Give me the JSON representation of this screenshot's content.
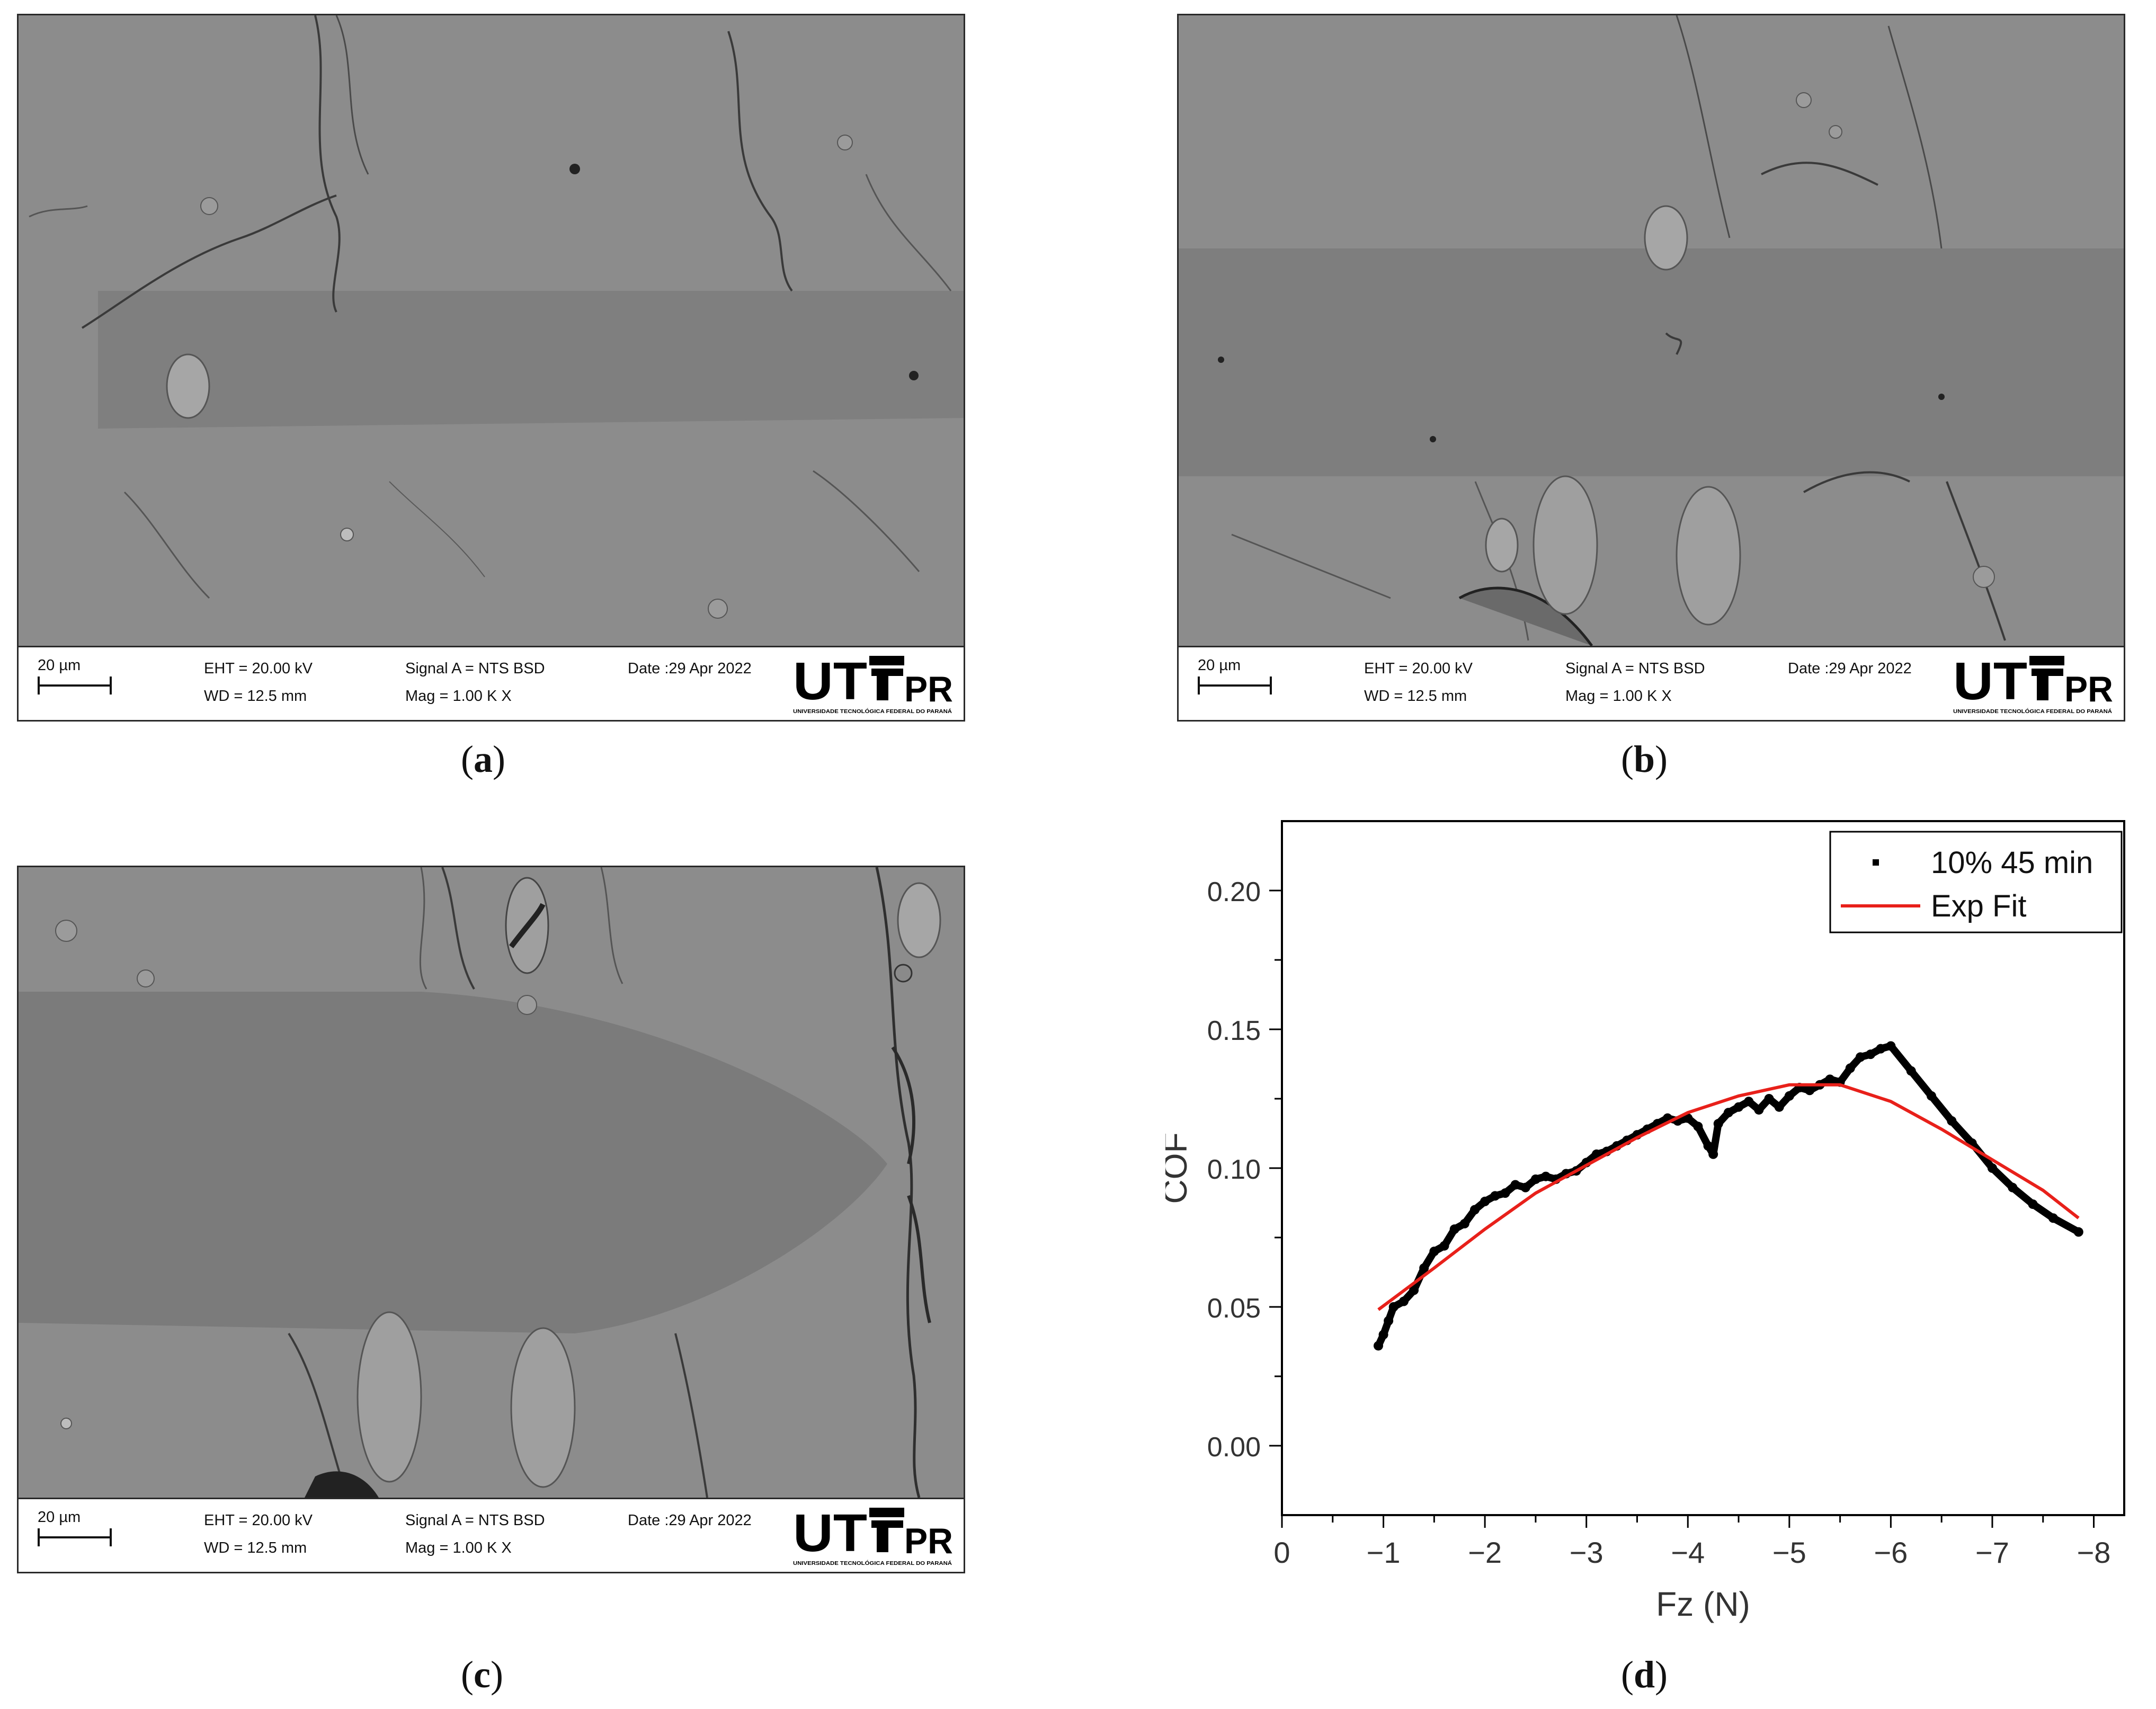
{
  "panels": [
    {
      "id": "a",
      "caption_open": "(",
      "caption_letter": "a",
      "caption_close": ")",
      "scale": "20 µm",
      "eht": "EHT = 20.00 kV",
      "wd": "WD = 12.5 mm",
      "signal": "Signal A = NTS BSD",
      "mag": "Mag =    1.00 K X",
      "date": "Date :29 Apr 2022",
      "logo_main": "UT",
      "logo_pr": "PR",
      "logo_sub": "UNIVERSIDADE TECNOLÓGICA FEDERAL DO PARANÁ"
    },
    {
      "id": "b",
      "caption_open": "(",
      "caption_letter": "b",
      "caption_close": ")",
      "scale": "20 µm",
      "eht": "EHT = 20.00 kV",
      "wd": "WD = 12.5 mm",
      "signal": "Signal A = NTS BSD",
      "mag": "Mag =    1.00 K X",
      "date": "Date :29 Apr 2022",
      "logo_main": "UT",
      "logo_pr": "PR",
      "logo_sub": "UNIVERSIDADE TECNOLÓGICA FEDERAL DO PARANÁ"
    },
    {
      "id": "c",
      "caption_open": "(",
      "caption_letter": "c",
      "caption_close": ")",
      "scale": "20 µm",
      "eht": "EHT = 20.00 kV",
      "wd": "WD = 12.5 mm",
      "signal": "Signal A = NTS BSD",
      "mag": "Mag =    1.00 K X",
      "date": "Date :29 Apr 2022",
      "logo_main": "UT",
      "logo_pr": "PR",
      "logo_sub": "UNIVERSIDADE TECNOLÓGICA FEDERAL DO PARANÁ"
    }
  ],
  "caption_d": {
    "open": "(",
    "letter": "d",
    "close": ")"
  },
  "chart_data": {
    "type": "scatter",
    "xlabel": "Fz (N)",
    "ylabel": "COF",
    "xlim": [
      0,
      -8.3
    ],
    "ylim": [
      -0.025,
      0.225
    ],
    "xticks": [
      0,
      -1,
      -2,
      -3,
      -4,
      -5,
      -6,
      -7,
      -8
    ],
    "xtick_labels": [
      "0",
      "−1",
      "−2",
      "−3",
      "−4",
      "−5",
      "−6",
      "−7",
      "−8"
    ],
    "yticks": [
      0.0,
      0.05,
      0.1,
      0.15,
      0.2
    ],
    "ytick_labels": [
      "0.00",
      "0.05",
      "0.10",
      "0.15",
      "0.20"
    ],
    "legend_position": "top-right",
    "series": [
      {
        "name": "10% 45 min",
        "style": "points",
        "color": "#000000",
        "x": [
          -0.95,
          -1.0,
          -1.05,
          -1.1,
          -1.2,
          -1.3,
          -1.4,
          -1.5,
          -1.6,
          -1.7,
          -1.8,
          -1.9,
          -2.0,
          -2.1,
          -2.2,
          -2.3,
          -2.4,
          -2.5,
          -2.6,
          -2.7,
          -2.8,
          -2.9,
          -3.0,
          -3.1,
          -3.2,
          -3.3,
          -3.4,
          -3.5,
          -3.6,
          -3.7,
          -3.8,
          -3.9,
          -4.0,
          -4.1,
          -4.2,
          -4.25,
          -4.3,
          -4.4,
          -4.5,
          -4.6,
          -4.7,
          -4.8,
          -4.9,
          -5.0,
          -5.1,
          -5.2,
          -5.3,
          -5.4,
          -5.5,
          -5.6,
          -5.7,
          -5.8,
          -5.9,
          -6.0,
          -6.2,
          -6.4,
          -6.6,
          -6.8,
          -7.0,
          -7.2,
          -7.4,
          -7.6,
          -7.85
        ],
        "y": [
          0.036,
          0.04,
          0.045,
          0.05,
          0.052,
          0.056,
          0.064,
          0.07,
          0.072,
          0.078,
          0.08,
          0.085,
          0.088,
          0.09,
          0.091,
          0.094,
          0.093,
          0.096,
          0.097,
          0.096,
          0.098,
          0.099,
          0.102,
          0.105,
          0.106,
          0.108,
          0.11,
          0.112,
          0.114,
          0.116,
          0.118,
          0.117,
          0.118,
          0.115,
          0.108,
          0.105,
          0.116,
          0.12,
          0.122,
          0.124,
          0.121,
          0.125,
          0.122,
          0.126,
          0.129,
          0.128,
          0.13,
          0.132,
          0.131,
          0.136,
          0.14,
          0.141,
          0.143,
          0.144,
          0.135,
          0.126,
          0.117,
          0.109,
          0.1,
          0.093,
          0.087,
          0.082,
          0.077
        ]
      },
      {
        "name": "Exp Fit",
        "style": "line",
        "color": "#e8201a",
        "x": [
          -0.95,
          -1.5,
          -2.0,
          -2.5,
          -3.0,
          -3.5,
          -4.0,
          -4.5,
          -5.0,
          -5.5,
          -6.0,
          -6.5,
          -7.0,
          -7.5,
          -7.85
        ],
        "y": [
          0.049,
          0.064,
          0.078,
          0.091,
          0.101,
          0.111,
          0.12,
          0.126,
          0.13,
          0.13,
          0.124,
          0.114,
          0.103,
          0.092,
          0.082
        ]
      }
    ]
  }
}
